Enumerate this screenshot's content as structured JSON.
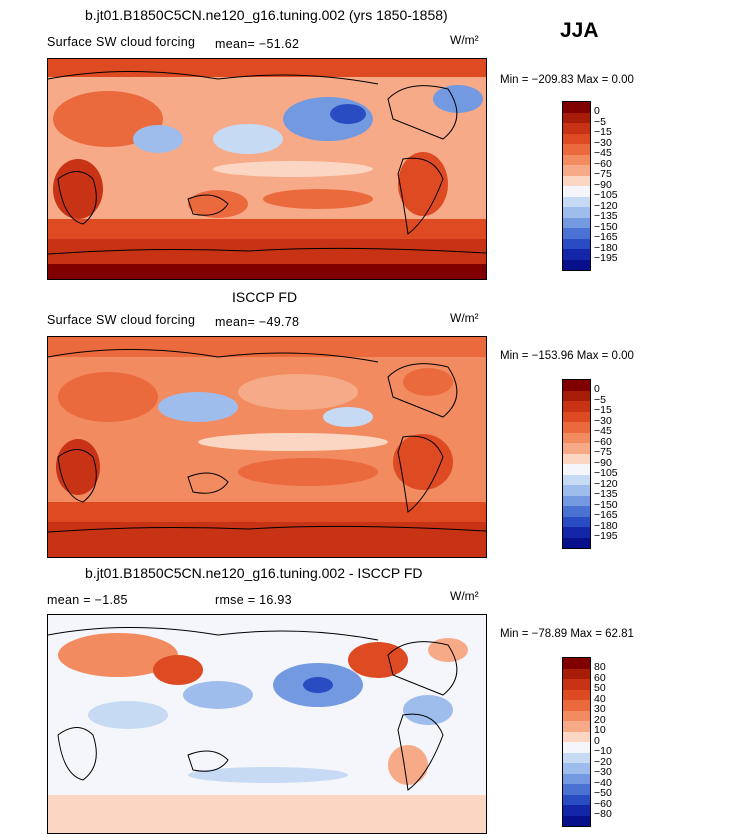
{
  "season": "JJA",
  "panels": [
    {
      "title": "b.jt01.B1850C5CN.ne120_g16.tuning.002 (yrs 1850-1858)",
      "variable": "Surface SW cloud forcing",
      "mean_text": "mean= −51.62",
      "units_text": "W/m²",
      "minmax_text": "Min = −209.83  Max =     0.00",
      "colorbar": [
        "0",
        "−5",
        "−15",
        "−30",
        "−45",
        "−60",
        "−75",
        "−90",
        "−105",
        "−120",
        "−135",
        "−150",
        "−165",
        "−180",
        "−195"
      ],
      "colors": [
        "#800000",
        "#a81d08",
        "#c83215",
        "#de4a22",
        "#eb6a3d",
        "#f28b5f",
        "#f6aa88",
        "#fbd6c3",
        "#f4f6fb",
        "#c7daf4",
        "#9fbdec",
        "#7399e0",
        "#4a72d2",
        "#2a4cc2",
        "#1326a8",
        "#07108a"
      ]
    },
    {
      "title": "ISCCP FD",
      "variable": "Surface SW cloud forcing",
      "mean_text": "mean= −49.78",
      "units_text": "W/m²",
      "minmax_text": "Min = −153.96  Max =     0.00",
      "colorbar": [
        "0",
        "−5",
        "−15",
        "−30",
        "−45",
        "−60",
        "−75",
        "−90",
        "−105",
        "−120",
        "−135",
        "−150",
        "−165",
        "−180",
        "−195"
      ],
      "colors": [
        "#800000",
        "#a81d08",
        "#c83215",
        "#de4a22",
        "#eb6a3d",
        "#f28b5f",
        "#f6aa88",
        "#fbd6c3",
        "#f4f6fb",
        "#c7daf4",
        "#9fbdec",
        "#7399e0",
        "#4a72d2",
        "#2a4cc2",
        "#1326a8",
        "#07108a"
      ]
    },
    {
      "title": "b.jt01.B1850C5CN.ne120_g16.tuning.002 - ISCCP FD",
      "mean_text": "mean =   −1.85",
      "rmse_text": "rmse =   16.93",
      "units_text": "W/m²",
      "minmax_text": "Min = −78.89  Max =   62.81",
      "colorbar": [
        "80",
        "60",
        "50",
        "40",
        "30",
        "20",
        "10",
        "0",
        "−10",
        "−20",
        "−30",
        "−40",
        "−50",
        "−60",
        "−80"
      ],
      "colors": [
        "#800000",
        "#a81d08",
        "#c83215",
        "#de4a22",
        "#eb6a3d",
        "#f28b5f",
        "#f6aa88",
        "#fbd6c3",
        "#f4f6fb",
        "#c7daf4",
        "#9fbdec",
        "#7399e0",
        "#4a72d2",
        "#2a4cc2",
        "#1326a8",
        "#07108a"
      ]
    }
  ]
}
